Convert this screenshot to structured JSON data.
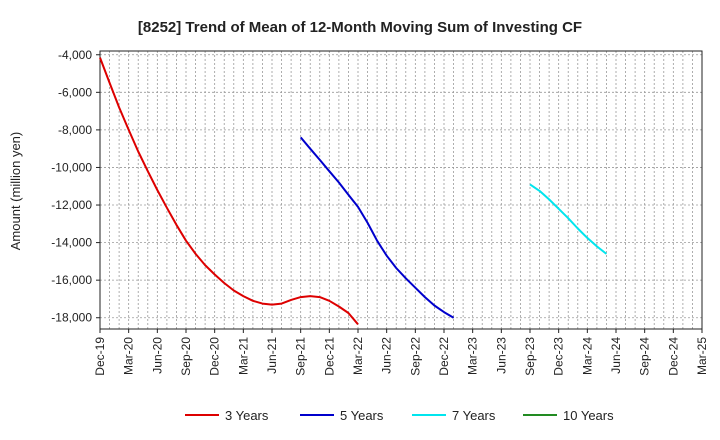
{
  "chart_data": {
    "type": "line",
    "title": "[8252]  Trend of Mean of 12-Month Moving Sum of Investing CF",
    "xlabel": "",
    "ylabel": "Amount (million yen)",
    "x_ticks": [
      "Dec-19",
      "Mar-20",
      "Jun-20",
      "Sep-20",
      "Dec-20",
      "Mar-21",
      "Jun-21",
      "Sep-21",
      "Dec-21",
      "Mar-22",
      "Jun-22",
      "Sep-22",
      "Dec-22",
      "Mar-23",
      "Jun-23",
      "Sep-23",
      "Dec-23",
      "Mar-24",
      "Jun-24",
      "Sep-24",
      "Dec-24",
      "Mar-25"
    ],
    "y_ticks": [
      -4000,
      -6000,
      -8000,
      -10000,
      -12000,
      -14000,
      -16000,
      -18000
    ],
    "y_tick_labels": [
      "-4,000",
      "-6,000",
      "-8,000",
      "-10,000",
      "-12,000",
      "-14,000",
      "-16,000",
      "-18,000"
    ],
    "ylim": [
      -18600,
      -3800
    ],
    "grid": true,
    "legend_position": "bottom",
    "series": [
      {
        "name": "3 Years",
        "color": "#dd0000",
        "start_index": 0,
        "values": [
          -4150,
          -5500,
          -6800,
          -8000,
          -9150,
          -10200,
          -11200,
          -12150,
          -13050,
          -13900,
          -14600,
          -15200,
          -15700,
          -16150,
          -16550,
          -16850,
          -17100,
          -17250,
          -17300,
          -17250,
          -17050,
          -16900,
          -16850,
          -16900,
          -17100,
          -17400,
          -17750,
          -18350
        ]
      },
      {
        "name": "5 Years",
        "color": "#0000cc",
        "start_index": 21,
        "values": [
          -8400,
          -9000,
          -9600,
          -10200,
          -10800,
          -11450,
          -12100,
          -12950,
          -13900,
          -14700,
          -15350,
          -15900,
          -16400,
          -16900,
          -17350,
          -17700,
          -18000
        ]
      },
      {
        "name": "7 Years",
        "color": "#00e5ee",
        "start_index": 45,
        "values": [
          -10900,
          -11250,
          -11700,
          -12200,
          -12700,
          -13250,
          -13750,
          -14200,
          -14600
        ]
      },
      {
        "name": "10 Years",
        "color": "#228b22",
        "start_index": 0,
        "values": []
      }
    ]
  }
}
